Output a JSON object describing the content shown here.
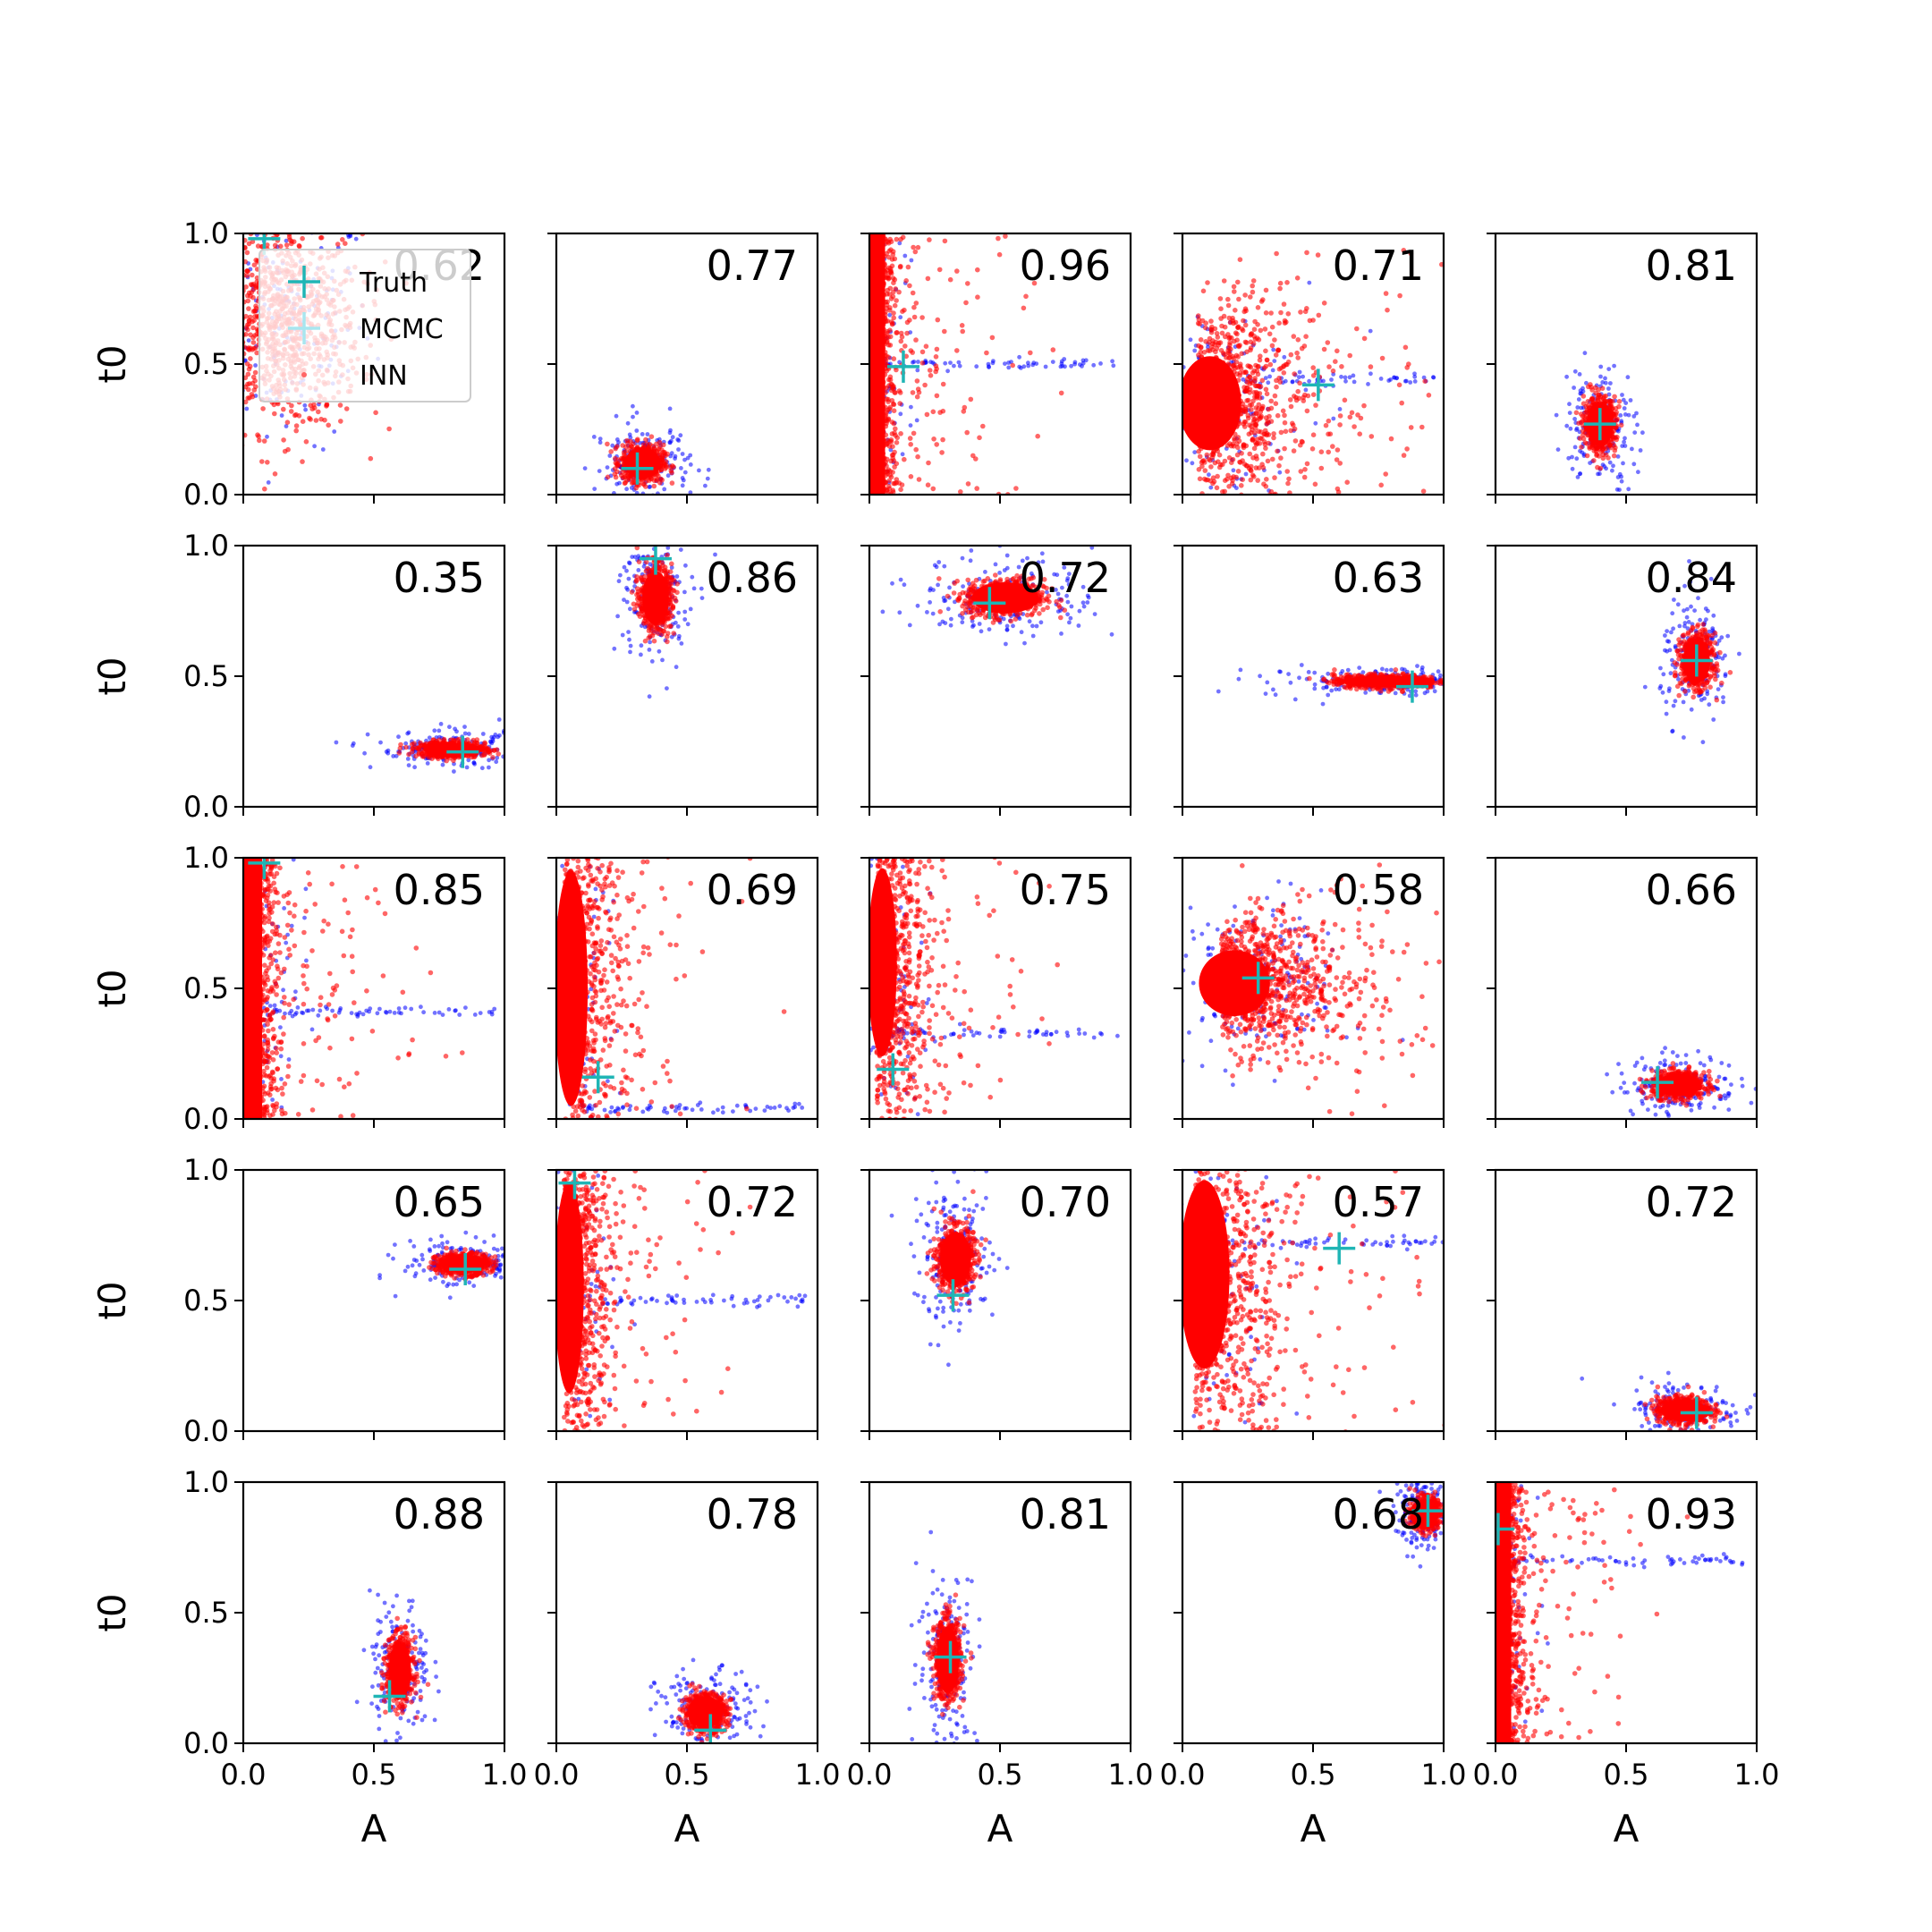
{
  "figure": {
    "colors": {
      "inn": "#ff0000",
      "mcmc": "#0000ff",
      "truth": "#1fb5b5",
      "axes": "#000000"
    }
  },
  "legend": {
    "items": [
      {
        "label": "Truth",
        "marker": "plus",
        "color": "#1fb5b5"
      },
      {
        "label": "MCMC",
        "marker": "plus",
        "color": "#a8e6ef"
      },
      {
        "label": "INN",
        "marker": "dot",
        "color": "#ff6666"
      }
    ],
    "placement": "top-left of first panel"
  },
  "chart_data": {
    "type": "scatter",
    "rows": 5,
    "cols": 5,
    "xlabel": "A",
    "ylabel": "t0",
    "xlim": [
      0,
      1
    ],
    "ylim": [
      0,
      1
    ],
    "xticks": [
      "0.0",
      "0.5",
      "1.0"
    ],
    "yticks": [
      "0.0",
      "0.5",
      "1.0"
    ],
    "grid": false,
    "panels": [
      {
        "corr": "0.62",
        "truth": [
          0.08,
          0.98
        ],
        "kind": "diffuse",
        "center": [
          0.15,
          0.65
        ],
        "spread": [
          0.15,
          0.2
        ]
      },
      {
        "corr": "0.77",
        "truth": [
          0.31,
          0.1
        ],
        "kind": "blob",
        "center": [
          0.33,
          0.12
        ],
        "spread": [
          0.08,
          0.07
        ]
      },
      {
        "corr": "0.96",
        "truth": [
          0.13,
          0.49
        ],
        "kind": "wall",
        "center": [
          0.05,
          0.5
        ],
        "spread": [
          0.05,
          0.5
        ],
        "streak_y": 0.5
      },
      {
        "corr": "0.71",
        "truth": [
          0.52,
          0.42
        ],
        "kind": "fan",
        "center": [
          0.15,
          0.35
        ],
        "spread": [
          0.15,
          0.2
        ],
        "streak_y": 0.44
      },
      {
        "corr": "0.81",
        "truth": [
          0.4,
          0.27
        ],
        "kind": "blob",
        "center": [
          0.4,
          0.27
        ],
        "spread": [
          0.06,
          0.1
        ]
      },
      {
        "corr": "0.35",
        "truth": [
          0.84,
          0.21
        ],
        "kind": "blob",
        "center": [
          0.8,
          0.22
        ],
        "spread": [
          0.13,
          0.03
        ]
      },
      {
        "corr": "0.86",
        "truth": [
          0.38,
          0.95
        ],
        "kind": "blob",
        "center": [
          0.38,
          0.8
        ],
        "spread": [
          0.06,
          0.12
        ]
      },
      {
        "corr": "0.72",
        "truth": [
          0.46,
          0.78
        ],
        "kind": "blob",
        "center": [
          0.52,
          0.8
        ],
        "spread": [
          0.15,
          0.07
        ]
      },
      {
        "corr": "0.63",
        "truth": [
          0.88,
          0.46
        ],
        "kind": "blob",
        "center": [
          0.78,
          0.48
        ],
        "spread": [
          0.2,
          0.025
        ]
      },
      {
        "corr": "0.84",
        "truth": [
          0.77,
          0.56
        ],
        "kind": "blob",
        "center": [
          0.77,
          0.56
        ],
        "spread": [
          0.06,
          0.1
        ]
      },
      {
        "corr": "0.85",
        "truth": [
          0.08,
          0.98
        ],
        "kind": "wall",
        "center": [
          0.07,
          0.6
        ],
        "spread": [
          0.06,
          0.4
        ],
        "streak_y": 0.41
      },
      {
        "corr": "0.69",
        "truth": [
          0.16,
          0.16
        ],
        "kind": "fan",
        "center": [
          0.08,
          0.5
        ],
        "spread": [
          0.08,
          0.5
        ],
        "streak_y": 0.04
      },
      {
        "corr": "0.75",
        "truth": [
          0.09,
          0.19
        ],
        "kind": "fan",
        "center": [
          0.07,
          0.6
        ],
        "spread": [
          0.07,
          0.4
        ],
        "streak_y": 0.33
      },
      {
        "corr": "0.58",
        "truth": [
          0.29,
          0.54
        ],
        "kind": "fan",
        "center": [
          0.25,
          0.52
        ],
        "spread": [
          0.17,
          0.14
        ]
      },
      {
        "corr": "0.66",
        "truth": [
          0.62,
          0.14
        ],
        "kind": "blob",
        "center": [
          0.7,
          0.13
        ],
        "spread": [
          0.1,
          0.05
        ]
      },
      {
        "corr": "0.65",
        "truth": [
          0.85,
          0.62
        ],
        "kind": "blob",
        "center": [
          0.84,
          0.64
        ],
        "spread": [
          0.1,
          0.04
        ]
      },
      {
        "corr": "0.72",
        "truth": [
          0.07,
          0.95
        ],
        "kind": "fan",
        "center": [
          0.07,
          0.55
        ],
        "spread": [
          0.07,
          0.45
        ],
        "streak_y": 0.5
      },
      {
        "corr": "0.70",
        "truth": [
          0.32,
          0.52
        ],
        "kind": "blob",
        "center": [
          0.33,
          0.66
        ],
        "spread": [
          0.07,
          0.12
        ]
      },
      {
        "corr": "0.57",
        "truth": [
          0.6,
          0.7
        ],
        "kind": "fan",
        "center": [
          0.12,
          0.6
        ],
        "spread": [
          0.12,
          0.4
        ],
        "streak_y": 0.72
      },
      {
        "corr": "0.72",
        "truth": [
          0.77,
          0.07
        ],
        "kind": "blob",
        "center": [
          0.72,
          0.08
        ],
        "spread": [
          0.1,
          0.05
        ]
      },
      {
        "corr": "0.88",
        "truth": [
          0.56,
          0.18
        ],
        "kind": "blob",
        "center": [
          0.6,
          0.28
        ],
        "spread": [
          0.05,
          0.12
        ]
      },
      {
        "corr": "0.78",
        "truth": [
          0.59,
          0.05
        ],
        "kind": "blob",
        "center": [
          0.57,
          0.12
        ],
        "spread": [
          0.08,
          0.07
        ]
      },
      {
        "corr": "0.81",
        "truth": [
          0.31,
          0.33
        ],
        "kind": "blob",
        "center": [
          0.3,
          0.32
        ],
        "spread": [
          0.05,
          0.15
        ]
      },
      {
        "corr": "0.68",
        "truth": [
          0.94,
          0.89
        ],
        "kind": "blob",
        "center": [
          0.93,
          0.88
        ],
        "spread": [
          0.05,
          0.06
        ]
      },
      {
        "corr": "0.93",
        "truth": [
          0.01,
          0.82
        ],
        "kind": "wall",
        "center": [
          0.05,
          0.5
        ],
        "spread": [
          0.05,
          0.5
        ],
        "streak_y": 0.7
      }
    ]
  }
}
